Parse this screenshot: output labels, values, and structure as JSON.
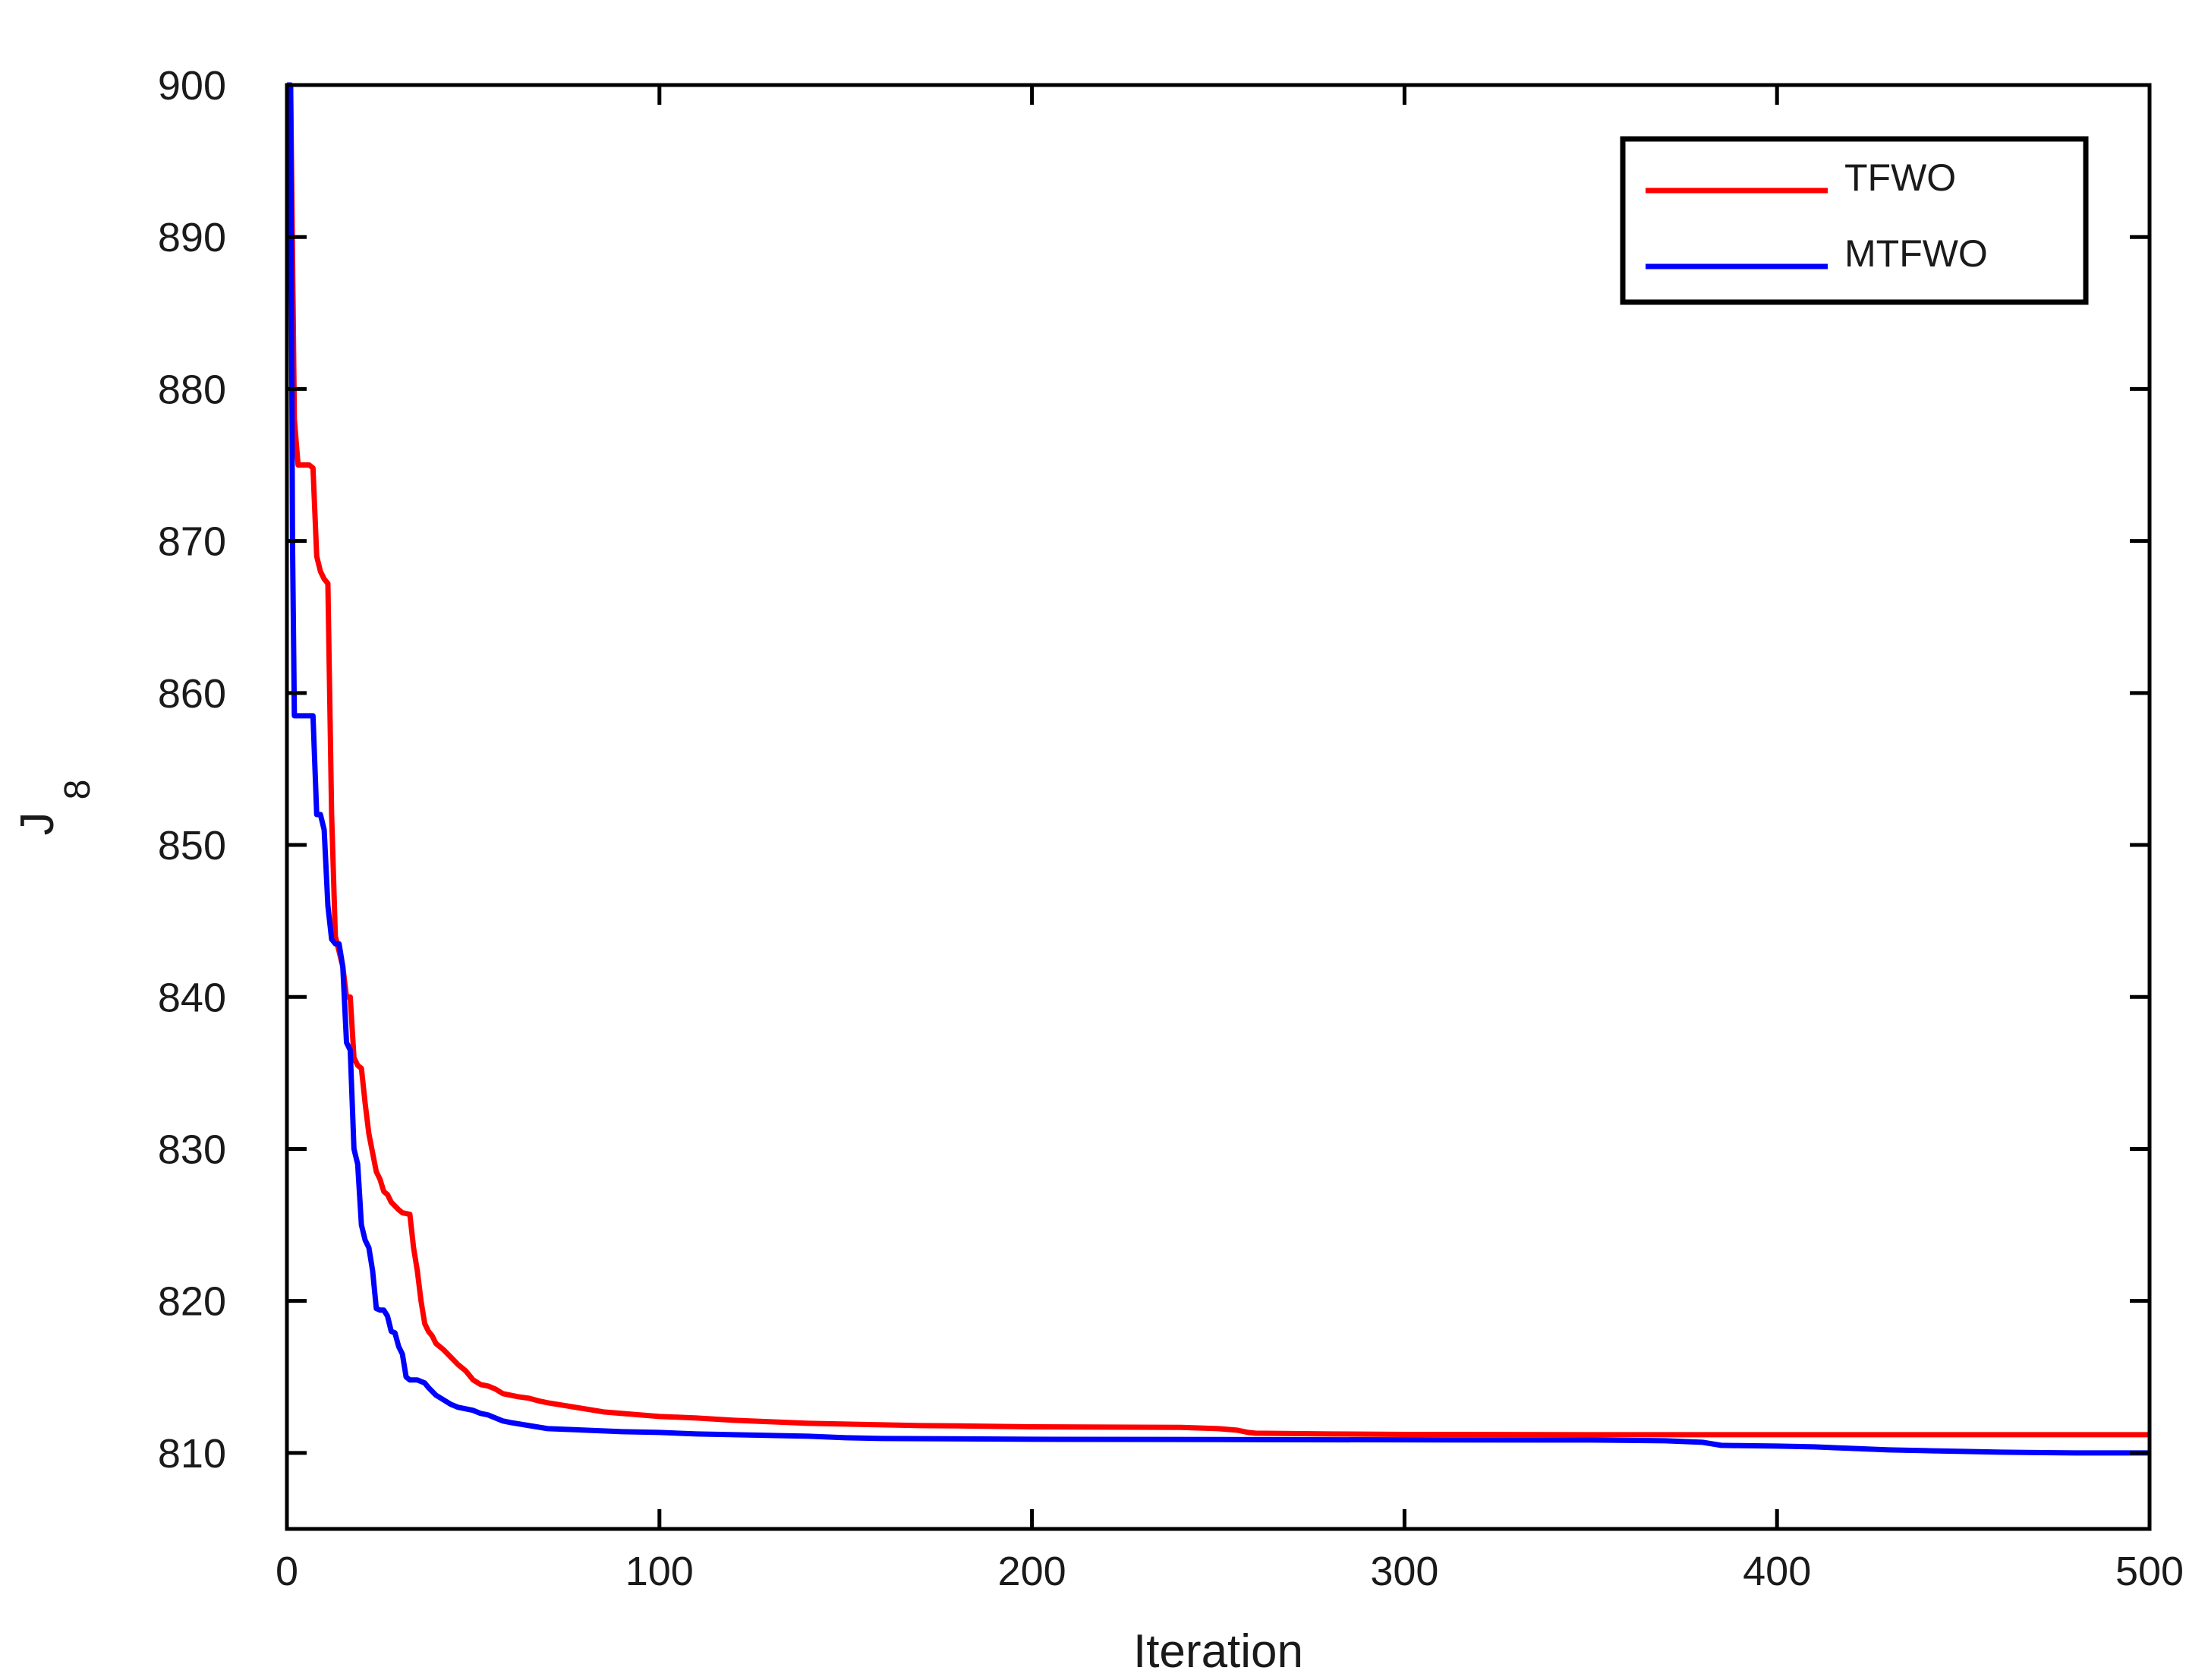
{
  "chart_data": {
    "type": "line",
    "title": "",
    "xlabel": "Iteration",
    "ylabel": "J",
    "ylabel_subscript": "8",
    "xlim": [
      0,
      500
    ],
    "ylim": [
      805,
      900
    ],
    "xticks": [
      0,
      100,
      200,
      300,
      400,
      500
    ],
    "yticks": [
      810,
      820,
      830,
      840,
      850,
      860,
      870,
      880,
      890,
      900
    ],
    "grid": false,
    "legend_position": "top-right",
    "series": [
      {
        "name": "TFWO",
        "color": "#ff0000",
        "points": [
          [
            0,
            900
          ],
          [
            1,
            900
          ],
          [
            2,
            878
          ],
          [
            3,
            875
          ],
          [
            5,
            875
          ],
          [
            6,
            875
          ],
          [
            7,
            874.8
          ],
          [
            8,
            869
          ],
          [
            9,
            868
          ],
          [
            10,
            867.5
          ],
          [
            11,
            867.2
          ],
          [
            12,
            852
          ],
          [
            13,
            844
          ],
          [
            14,
            843
          ],
          [
            15,
            842
          ],
          [
            16,
            840
          ],
          [
            17,
            840
          ],
          [
            18,
            836
          ],
          [
            19,
            835.5
          ],
          [
            20,
            835.3
          ],
          [
            21,
            833
          ],
          [
            22,
            831
          ],
          [
            24,
            828.5
          ],
          [
            25,
            828
          ],
          [
            26,
            827.2
          ],
          [
            27,
            827
          ],
          [
            28,
            826.5
          ],
          [
            30,
            826
          ],
          [
            31,
            825.8
          ],
          [
            33,
            825.7
          ],
          [
            34,
            823.5
          ],
          [
            35,
            822
          ],
          [
            36,
            820
          ],
          [
            37,
            818.5
          ],
          [
            38,
            818
          ],
          [
            39,
            817.7
          ],
          [
            40,
            817.2
          ],
          [
            42,
            816.8
          ],
          [
            44,
            816.3
          ],
          [
            46,
            815.8
          ],
          [
            48,
            815.4
          ],
          [
            50,
            814.8
          ],
          [
            52,
            814.5
          ],
          [
            54,
            814.4
          ],
          [
            56,
            814.2
          ],
          [
            58,
            813.9
          ],
          [
            60,
            813.8
          ],
          [
            62,
            813.7
          ],
          [
            65,
            813.6
          ],
          [
            68,
            813.4
          ],
          [
            70,
            813.3
          ],
          [
            75,
            813.1
          ],
          [
            80,
            812.9
          ],
          [
            85,
            812.7
          ],
          [
            90,
            812.6
          ],
          [
            95,
            812.5
          ],
          [
            100,
            812.4
          ],
          [
            110,
            812.3
          ],
          [
            120,
            812.15
          ],
          [
            130,
            812.05
          ],
          [
            140,
            811.95
          ],
          [
            150,
            811.9
          ],
          [
            160,
            811.85
          ],
          [
            170,
            811.8
          ],
          [
            180,
            811.78
          ],
          [
            200,
            811.72
          ],
          [
            220,
            811.7
          ],
          [
            240,
            811.68
          ],
          [
            250,
            811.6
          ],
          [
            255,
            811.5
          ],
          [
            258,
            811.35
          ],
          [
            260,
            811.3
          ],
          [
            280,
            811.25
          ],
          [
            300,
            811.22
          ],
          [
            350,
            811.2
          ],
          [
            400,
            811.2
          ],
          [
            450,
            811.2
          ],
          [
            500,
            811.2
          ]
        ]
      },
      {
        "name": "MTFWO",
        "color": "#0000ff",
        "points": [
          [
            0,
            900
          ],
          [
            1,
            900
          ],
          [
            1.5,
            870
          ],
          [
            2,
            858.5
          ],
          [
            3,
            858.5
          ],
          [
            6,
            858.5
          ],
          [
            7,
            858.5
          ],
          [
            8,
            852
          ],
          [
            9,
            852
          ],
          [
            10,
            851
          ],
          [
            11,
            846
          ],
          [
            12,
            843.8
          ],
          [
            13,
            843.5
          ],
          [
            14,
            843.5
          ],
          [
            15,
            842
          ],
          [
            16,
            837
          ],
          [
            17,
            836.5
          ],
          [
            18,
            830
          ],
          [
            19,
            829
          ],
          [
            20,
            825
          ],
          [
            21,
            824
          ],
          [
            22,
            823.5
          ],
          [
            23,
            822
          ],
          [
            24,
            819.5
          ],
          [
            25,
            819.4
          ],
          [
            26,
            819.4
          ],
          [
            27,
            819
          ],
          [
            28,
            818
          ],
          [
            29,
            817.9
          ],
          [
            30,
            817
          ],
          [
            31,
            816.5
          ],
          [
            32,
            815
          ],
          [
            33,
            814.8
          ],
          [
            35,
            814.8
          ],
          [
            37,
            814.6
          ],
          [
            38,
            814.3
          ],
          [
            40,
            813.8
          ],
          [
            42,
            813.5
          ],
          [
            44,
            813.2
          ],
          [
            46,
            813
          ],
          [
            48,
            812.9
          ],
          [
            50,
            812.8
          ],
          [
            52,
            812.6
          ],
          [
            54,
            812.5
          ],
          [
            56,
            812.3
          ],
          [
            58,
            812.1
          ],
          [
            60,
            812
          ],
          [
            65,
            811.8
          ],
          [
            70,
            811.6
          ],
          [
            80,
            811.5
          ],
          [
            90,
            811.4
          ],
          [
            100,
            811.35
          ],
          [
            110,
            811.25
          ],
          [
            120,
            811.2
          ],
          [
            140,
            811.1
          ],
          [
            150,
            811
          ],
          [
            160,
            810.95
          ],
          [
            200,
            810.9
          ],
          [
            250,
            810.88
          ],
          [
            300,
            810.86
          ],
          [
            350,
            810.85
          ],
          [
            370,
            810.8
          ],
          [
            380,
            810.7
          ],
          [
            385,
            810.5
          ],
          [
            390,
            810.48
          ],
          [
            400,
            810.45
          ],
          [
            410,
            810.4
          ],
          [
            420,
            810.3
          ],
          [
            430,
            810.2
          ],
          [
            440,
            810.15
          ],
          [
            450,
            810.1
          ],
          [
            460,
            810.05
          ],
          [
            480,
            810
          ],
          [
            500,
            810
          ]
        ]
      }
    ]
  }
}
